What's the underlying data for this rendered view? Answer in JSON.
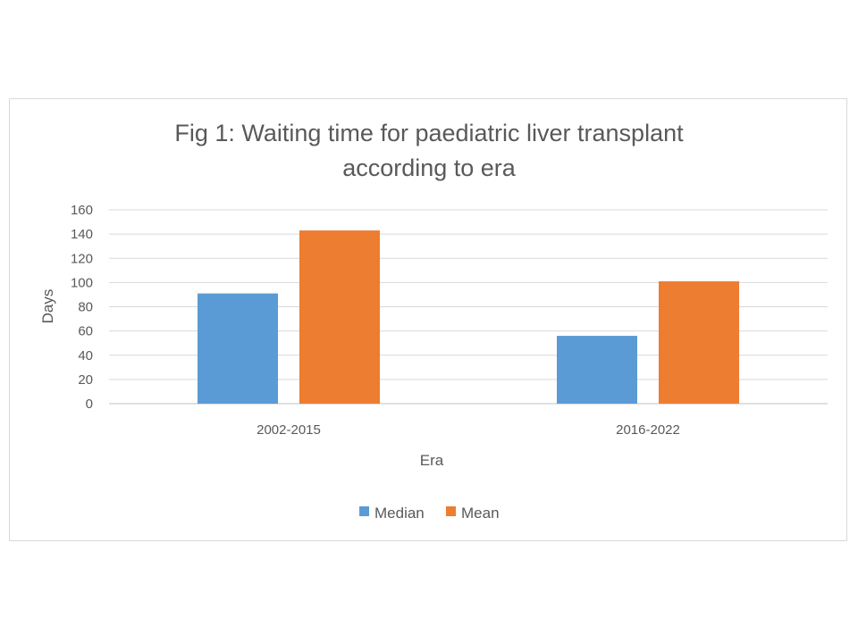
{
  "chart_data": {
    "type": "bar",
    "title_lines": [
      "Fig 1: Waiting time for paediatric liver transplant",
      "according to era"
    ],
    "categories": [
      "2002-2015",
      "2016-2022"
    ],
    "series": [
      {
        "name": "Median",
        "values": [
          91,
          56
        ],
        "color": "#5b9bd5"
      },
      {
        "name": "Mean",
        "values": [
          143,
          101
        ],
        "color": "#ed7d31"
      }
    ],
    "xlabel": "Era",
    "ylabel": "Days",
    "ylim": [
      0,
      160
    ],
    "yticks": [
      0,
      20,
      40,
      60,
      80,
      100,
      120,
      140,
      160
    ],
    "grid": true,
    "legend_position": "bottom"
  }
}
